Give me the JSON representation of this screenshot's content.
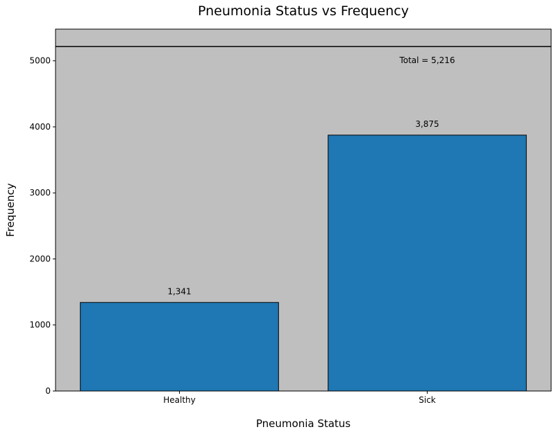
{
  "chart_data": {
    "type": "bar",
    "title": "Pneumonia Status vs Frequency",
    "xlabel": "Pneumonia Status",
    "ylabel": "Frequency",
    "categories": [
      "Healthy",
      "Sick"
    ],
    "values": [
      1341,
      3875
    ],
    "value_labels": [
      "1,341",
      "3,875"
    ],
    "ylim": [
      0,
      5480
    ],
    "yticks": [
      0,
      1000,
      2000,
      3000,
      4000,
      5000
    ],
    "reference_line": {
      "value": 5216,
      "label": "Total = 5,216"
    },
    "grid": false,
    "colors": {
      "bar": "#1f77b4",
      "background": "#bfbfbf",
      "edge": "#000000"
    }
  }
}
